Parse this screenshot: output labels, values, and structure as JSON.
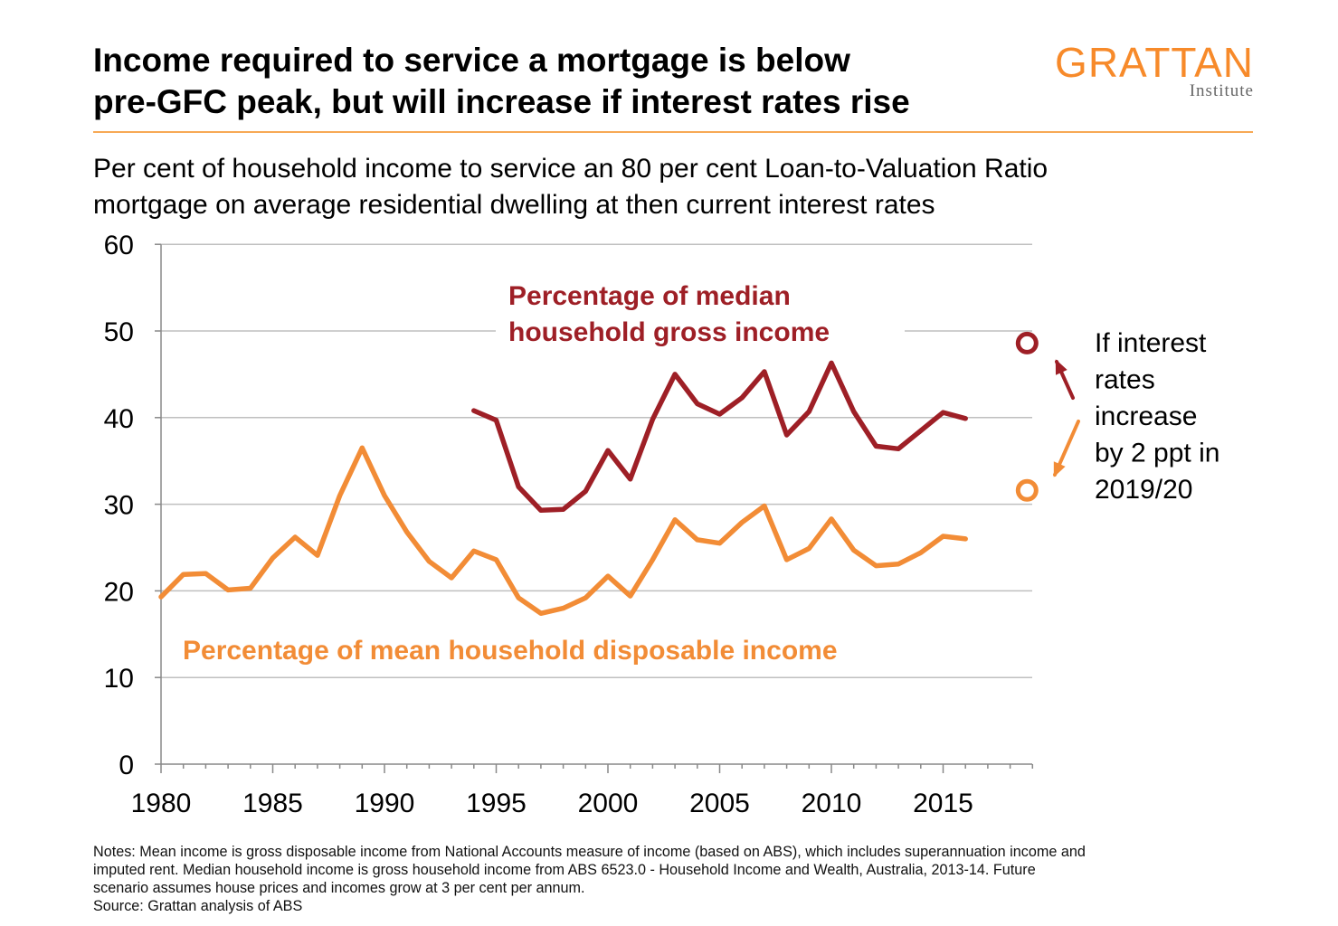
{
  "header": {
    "title_line1": "Income required to service a mortgage is below",
    "title_line2": "pre-GFC peak, but will increase if interest rates rise",
    "subtitle_line1": "Per cent of household income to service an 80 per cent Loan-to-Valuation Ratio",
    "subtitle_line2": "mortgage on average residential dwelling at then current interest rates"
  },
  "logo": {
    "name": "GRATTAN",
    "sub": "Institute"
  },
  "colors": {
    "median": "#9e1f26",
    "mean": "#f28c36",
    "accent_rule": "#f7a955",
    "grid": "#bfbfbf"
  },
  "chart_data": {
    "type": "line",
    "xlim": [
      1980,
      2019
    ],
    "ylim": [
      0,
      60
    ],
    "x_ticks": [
      "1980",
      "1985",
      "1990",
      "1995",
      "2000",
      "2005",
      "2010",
      "2015"
    ],
    "y_ticks": [
      "0",
      "10",
      "20",
      "30",
      "40",
      "50",
      "60"
    ],
    "grid": "horizontal",
    "series": [
      {
        "name": "Percentage of median household gross income",
        "label_lines": [
          "Percentage of median",
          "household gross income"
        ],
        "color": "#9e1f26",
        "x": [
          1994,
          1995,
          1996,
          1997,
          1998,
          1999,
          2000,
          2001,
          2002,
          2003,
          2004,
          2005,
          2006,
          2007,
          2008,
          2009,
          2010,
          2011,
          2012,
          2013,
          2014,
          2015,
          2016
        ],
        "values": [
          40.8,
          39.7,
          32.0,
          29.3,
          29.4,
          31.5,
          36.2,
          32.9,
          39.8,
          45.0,
          41.6,
          40.4,
          42.3,
          45.3,
          38.0,
          40.7,
          46.3,
          40.7,
          36.7,
          36.4,
          38.5,
          40.6,
          39.9
        ]
      },
      {
        "name": "Percentage of mean household disposable income",
        "label_lines": [
          "Percentage of mean household disposable income"
        ],
        "color": "#f28c36",
        "x": [
          1980,
          1981,
          1982,
          1983,
          1984,
          1985,
          1986,
          1987,
          1988,
          1989,
          1990,
          1991,
          1992,
          1993,
          1994,
          1995,
          1996,
          1997,
          1998,
          1999,
          2000,
          2001,
          2002,
          2003,
          2004,
          2005,
          2006,
          2007,
          2008,
          2009,
          2010,
          2011,
          2012,
          2013,
          2014,
          2015,
          2016
        ],
        "values": [
          19.3,
          21.9,
          22.0,
          20.1,
          20.3,
          23.8,
          26.2,
          24.1,
          31.0,
          36.5,
          31.0,
          26.8,
          23.4,
          21.5,
          24.6,
          23.6,
          19.2,
          17.4,
          18.0,
          19.2,
          21.7,
          19.4,
          23.6,
          28.2,
          25.9,
          25.5,
          27.9,
          29.8,
          23.6,
          24.9,
          28.3,
          24.7,
          22.9,
          23.1,
          24.4,
          26.3,
          26.0
        ]
      }
    ],
    "scenario": {
      "x": 2019,
      "median_value": 48.6,
      "mean_value": 31.6,
      "label_lines": [
        "If interest",
        "rates",
        "increase",
        "by 2 ppt in",
        "2019/20"
      ]
    }
  },
  "footer": {
    "notes_line1": "Notes: Mean income is gross disposable income from National Accounts measure of income (based on ABS), which includes superannuation income and",
    "notes_line2": "imputed rent. Median household income is gross household income from ABS 6523.0 - Household Income and Wealth, Australia, 2013-14. Future",
    "notes_line3": "scenario assumes house prices and incomes grow at 3 per cent per annum.",
    "source": "Source: Grattan analysis of ABS"
  }
}
